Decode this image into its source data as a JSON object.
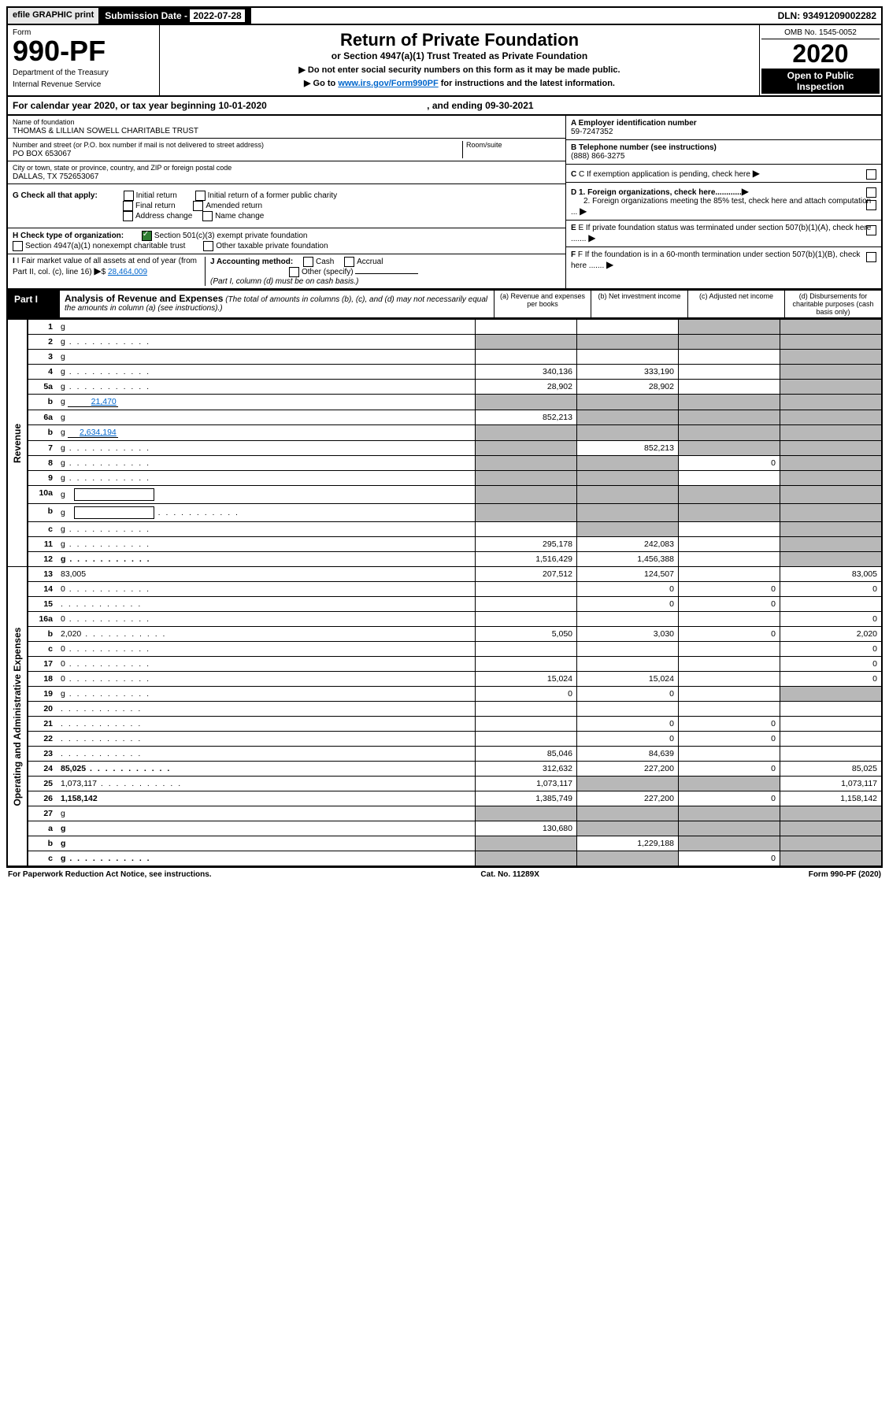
{
  "topbar": {
    "efile": "efile GRAPHIC print",
    "sub_label": "Submission Date - ",
    "sub_date": "2022-07-28",
    "dln": "DLN: 93491209002282"
  },
  "header": {
    "form": "Form",
    "form_num": "990-PF",
    "dept": "Department of the Treasury",
    "irs": "Internal Revenue Service",
    "title": "Return of Private Foundation",
    "subtitle": "or Section 4947(a)(1) Trust Treated as Private Foundation",
    "instr1": "▶ Do not enter social security numbers on this form as it may be made public.",
    "instr2_pre": "▶ Go to ",
    "instr2_link": "www.irs.gov/Form990PF",
    "instr2_post": " for instructions and the latest information.",
    "omb": "OMB No. 1545-0052",
    "year": "2020",
    "open": "Open to Public Inspection"
  },
  "cal_year": {
    "text": "For calendar year 2020, or tax year beginning 10-01-2020",
    "ending": ", and ending 09-30-2021"
  },
  "info": {
    "name_label": "Name of foundation",
    "name": "THOMAS & LILLIAN SOWELL CHARITABLE TRUST",
    "addr_label": "Number and street (or P.O. box number if mail is not delivered to street address)",
    "addr": "PO BOX 653067",
    "room_label": "Room/suite",
    "room": "",
    "city_label": "City or town, state or province, country, and ZIP or foreign postal code",
    "city": "DALLAS, TX  752653067",
    "a_label": "A Employer identification number",
    "ein": "59-7247352",
    "b_label": "B Telephone number (see instructions)",
    "phone": "(888) 866-3275",
    "c_label": "C If exemption application is pending, check here",
    "d1": "D 1. Foreign organizations, check here............",
    "d2": "2. Foreign organizations meeting the 85% test, check here and attach computation ...",
    "e": "E  If private foundation status was terminated under section 507(b)(1)(A), check here .......",
    "f": "F  If the foundation is in a 60-month termination under section 507(b)(1)(B), check here .......",
    "g_label": "G Check all that apply:",
    "g_opts": [
      "Initial return",
      "Initial return of a former public charity",
      "Final return",
      "Amended return",
      "Address change",
      "Name change"
    ],
    "h_label": "H Check type of organization:",
    "h1": "Section 501(c)(3) exempt private foundation",
    "h2": "Section 4947(a)(1) nonexempt charitable trust",
    "h3": "Other taxable private foundation",
    "i_label": "I Fair market value of all assets at end of year (from Part II, col. (c), line 16)",
    "i_val": "28,464,009",
    "j_label": "J Accounting method:",
    "j_cash": "Cash",
    "j_acc": "Accrual",
    "j_other": "Other (specify)",
    "j_note": "(Part I, column (d) must be on cash basis.)"
  },
  "part1": {
    "label": "Part I",
    "title": "Analysis of Revenue and Expenses",
    "title_note": "(The total of amounts in columns (b), (c), and (d) may not necessarily equal the amounts in column (a) (see instructions).)",
    "cols": {
      "a": "(a)  Revenue and expenses per books",
      "b": "(b)  Net investment income",
      "c": "(c)  Adjusted net income",
      "d": "(d)  Disbursements for charitable purposes (cash basis only)"
    }
  },
  "sections": {
    "revenue": "Revenue",
    "expenses": "Operating and Administrative Expenses"
  },
  "rows": [
    {
      "n": "1",
      "d": "g",
      "a": "",
      "b": "",
      "c": "g"
    },
    {
      "n": "2",
      "d": "g",
      "dots": true,
      "a": "g",
      "b": "g",
      "c": "g"
    },
    {
      "n": "3",
      "d": "g",
      "a": "",
      "b": "",
      "c": ""
    },
    {
      "n": "4",
      "d": "g",
      "dots": true,
      "a": "340,136",
      "b": "333,190",
      "c": ""
    },
    {
      "n": "5a",
      "d": "g",
      "dots": true,
      "a": "28,902",
      "b": "28,902",
      "c": ""
    },
    {
      "n": "b",
      "d": "g",
      "inline": "21,470",
      "a": "g",
      "b": "g",
      "c": "g"
    },
    {
      "n": "6a",
      "d": "g",
      "a": "852,213",
      "b": "g",
      "c": "g"
    },
    {
      "n": "b",
      "d": "g",
      "inline": "2,634,194",
      "a": "g",
      "b": "g",
      "c": "g"
    },
    {
      "n": "7",
      "d": "g",
      "dots": true,
      "a": "g",
      "b": "852,213",
      "c": "g"
    },
    {
      "n": "8",
      "d": "g",
      "dots": true,
      "a": "g",
      "b": "g",
      "c": "0"
    },
    {
      "n": "9",
      "d": "g",
      "dots": true,
      "a": "g",
      "b": "g",
      "c": ""
    },
    {
      "n": "10a",
      "d": "g",
      "box": true,
      "a": "g",
      "b": "g",
      "c": "g"
    },
    {
      "n": "b",
      "d": "g",
      "dots": true,
      "box": true,
      "a": "g",
      "b": "g",
      "c": "g"
    },
    {
      "n": "c",
      "d": "g",
      "dots": true,
      "a": "",
      "b": "g",
      "c": ""
    },
    {
      "n": "11",
      "d": "g",
      "dots": true,
      "a": "295,178",
      "b": "242,083",
      "c": ""
    },
    {
      "n": "12",
      "d": "g",
      "dots": true,
      "bold": true,
      "a": "1,516,429",
      "b": "1,456,388",
      "c": ""
    },
    {
      "n": "13",
      "d": "83,005",
      "a": "207,512",
      "b": "124,507",
      "c": ""
    },
    {
      "n": "14",
      "d": "0",
      "dots": true,
      "a": "",
      "b": "0",
      "c": "0"
    },
    {
      "n": "15",
      "d": "",
      "dots": true,
      "a": "",
      "b": "0",
      "c": "0"
    },
    {
      "n": "16a",
      "d": "0",
      "dots": true,
      "a": "",
      "b": "",
      "c": ""
    },
    {
      "n": "b",
      "d": "2,020",
      "dots": true,
      "a": "5,050",
      "b": "3,030",
      "c": "0"
    },
    {
      "n": "c",
      "d": "0",
      "dots": true,
      "a": "",
      "b": "",
      "c": ""
    },
    {
      "n": "17",
      "d": "0",
      "dots": true,
      "a": "",
      "b": "",
      "c": ""
    },
    {
      "n": "18",
      "d": "0",
      "dots": true,
      "a": "15,024",
      "b": "15,024",
      "c": ""
    },
    {
      "n": "19",
      "d": "g",
      "dots": true,
      "a": "0",
      "b": "0",
      "c": ""
    },
    {
      "n": "20",
      "d": "",
      "dots": true,
      "a": "",
      "b": "",
      "c": ""
    },
    {
      "n": "21",
      "d": "",
      "dots": true,
      "a": "",
      "b": "0",
      "c": "0"
    },
    {
      "n": "22",
      "d": "",
      "dots": true,
      "a": "",
      "b": "0",
      "c": "0"
    },
    {
      "n": "23",
      "d": "",
      "dots": true,
      "a": "85,046",
      "b": "84,639",
      "c": ""
    },
    {
      "n": "24",
      "d": "85,025",
      "dots": true,
      "bold": true,
      "a": "312,632",
      "b": "227,200",
      "c": "0"
    },
    {
      "n": "25",
      "d": "1,073,117",
      "dots": true,
      "a": "1,073,117",
      "b": "g",
      "c": "g"
    },
    {
      "n": "26",
      "d": "1,158,142",
      "bold": true,
      "a": "1,385,749",
      "b": "227,200",
      "c": "0"
    },
    {
      "n": "27",
      "d": "g",
      "a": "g",
      "b": "g",
      "c": "g"
    },
    {
      "n": "a",
      "d": "g",
      "bold": true,
      "a": "130,680",
      "b": "g",
      "c": "g"
    },
    {
      "n": "b",
      "d": "g",
      "bold": true,
      "a": "g",
      "b": "1,229,188",
      "c": "g"
    },
    {
      "n": "c",
      "d": "g",
      "dots": true,
      "bold": true,
      "a": "g",
      "b": "g",
      "c": "0"
    }
  ],
  "footer": {
    "left": "For Paperwork Reduction Act Notice, see instructions.",
    "mid": "Cat. No. 11289X",
    "right": "Form 990-PF (2020)"
  },
  "colors": {
    "grey": "#b8b8b8",
    "green": "#2e7d32",
    "link": "#0066cc"
  }
}
